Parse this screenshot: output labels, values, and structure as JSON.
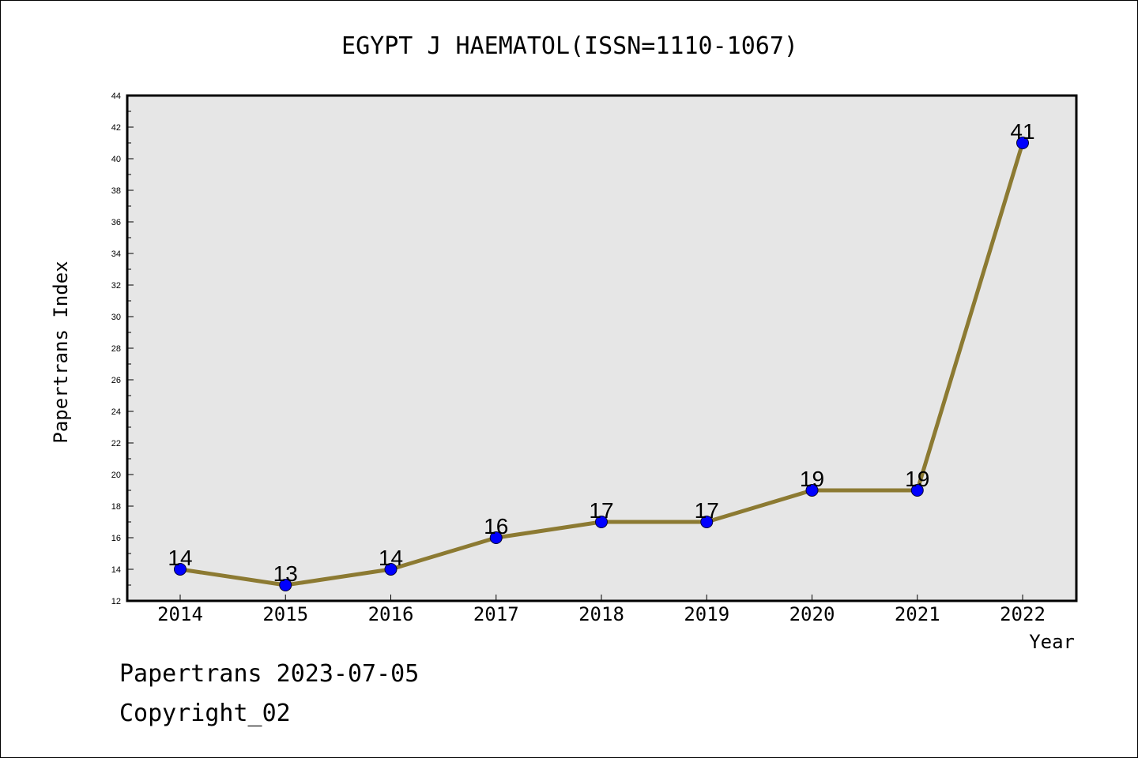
{
  "chart_data": {
    "type": "line",
    "title": "EGYPT J HAEMATOL(ISSN=1110-1067)",
    "xlabel": "Year",
    "ylabel": "Papertrans Index",
    "categories": [
      "2014",
      "2015",
      "2016",
      "2017",
      "2018",
      "2019",
      "2020",
      "2021",
      "2022"
    ],
    "series": [
      {
        "values": [
          14,
          13,
          14,
          16,
          17,
          17,
          19,
          19,
          41
        ]
      }
    ],
    "data_labels": [
      "14",
      "13",
      "14",
      "16",
      "17",
      "17",
      "19",
      "19",
      "41"
    ],
    "ylim": [
      12,
      44
    ],
    "yticks": [
      "12",
      "14",
      "16",
      "18",
      "20",
      "22",
      "24",
      "26",
      "28",
      "30",
      "32",
      "34",
      "36",
      "38",
      "40",
      "42",
      "44"
    ],
    "grid": false,
    "colors": {
      "line": "#8C7A32",
      "marker": "#0000FF",
      "plot_background": "#E6E6E6",
      "frame": "#000000"
    }
  },
  "footer": {
    "line1": "Papertrans 2023-07-05",
    "line2": "Copyright_02"
  }
}
